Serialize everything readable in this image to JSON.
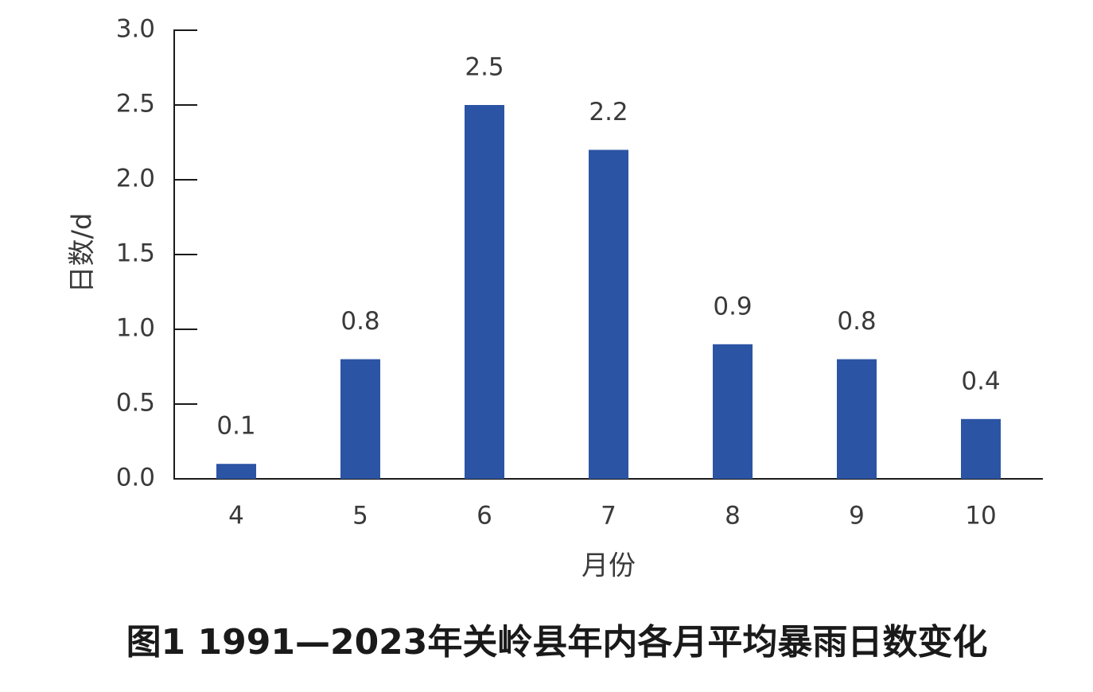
{
  "chart_data": {
    "type": "bar",
    "title": "图1  1991—2023年关岭县年内各月平均暴雨日数变化",
    "x_label": "月份",
    "y_label": "日数/d",
    "categories": [
      "4",
      "5",
      "6",
      "7",
      "8",
      "9",
      "10"
    ],
    "values": [
      0.1,
      0.8,
      2.5,
      2.2,
      0.9,
      0.8,
      0.4
    ],
    "color": "#2c54a4",
    "ylim": [
      0,
      3
    ],
    "yticks": [
      {
        "value": 0,
        "label": "0.0"
      },
      0.5,
      {
        "value": 1,
        "label": "1.0"
      },
      1.5,
      {
        "value": 2,
        "label": "2.0"
      },
      2.5,
      {
        "value": 3,
        "label": "3.0"
      }
    ],
    "grid": false
  }
}
